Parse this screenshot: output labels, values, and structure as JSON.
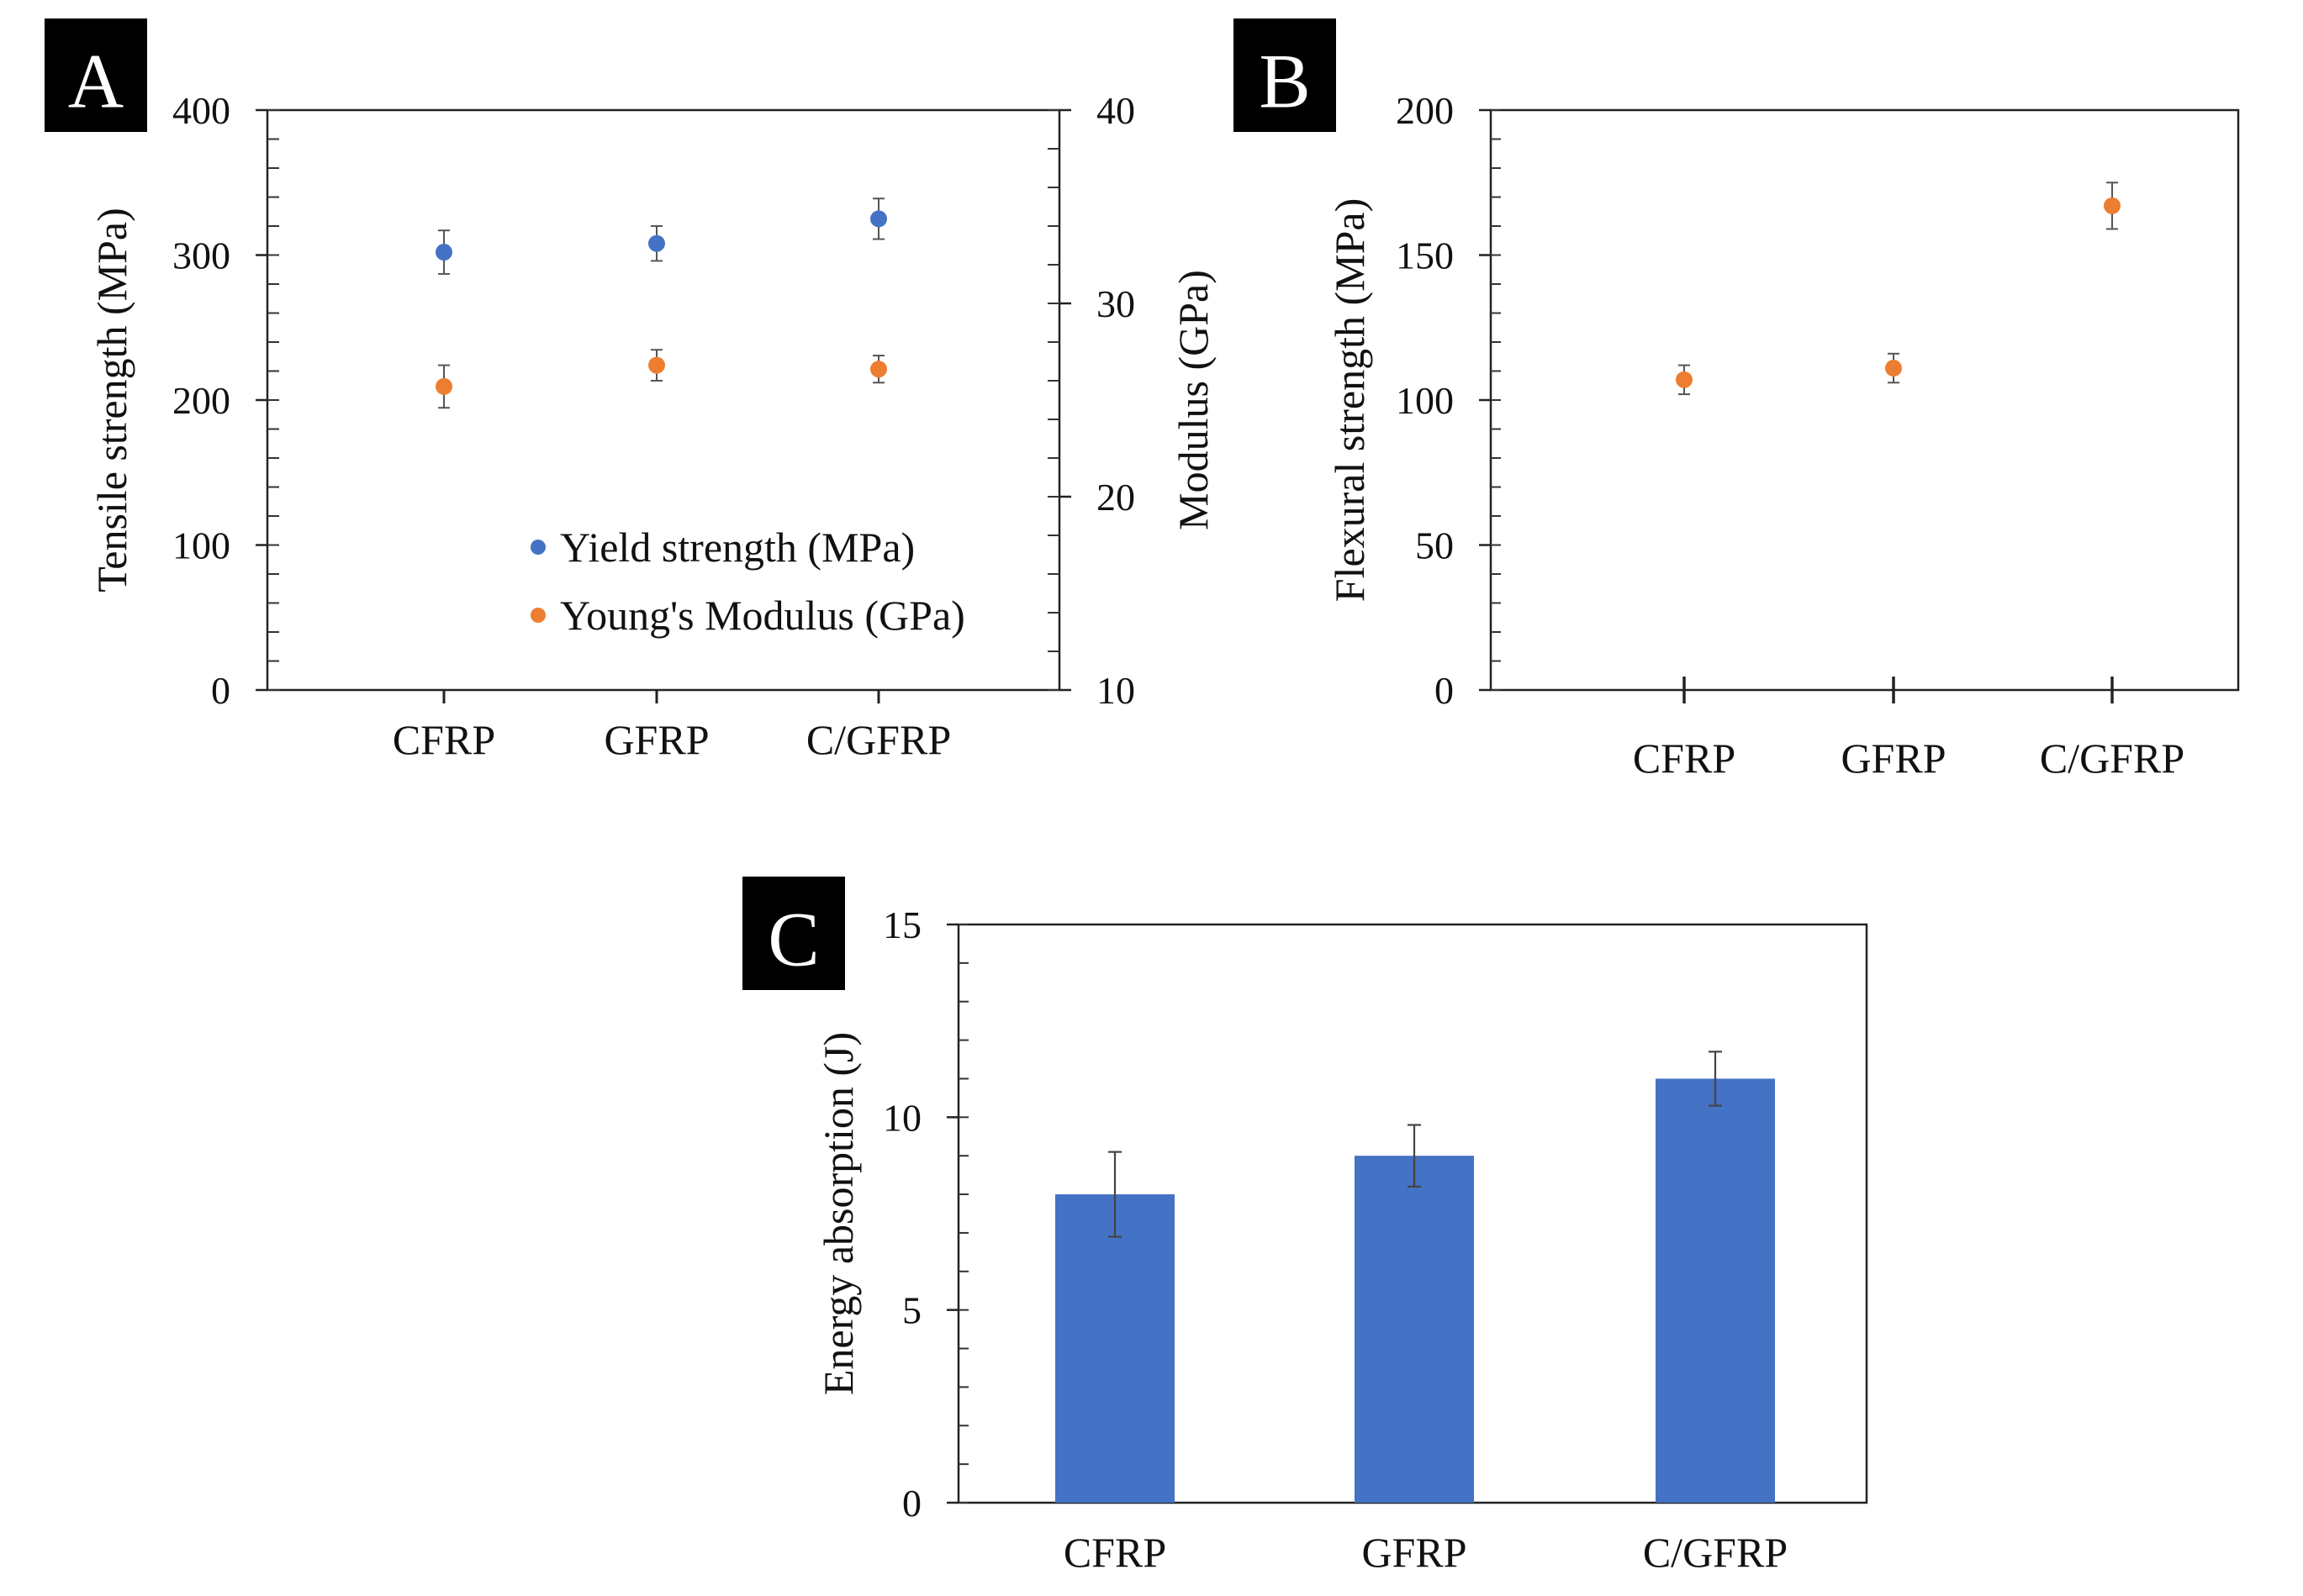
{
  "chart_data": [
    {
      "panel_label": "A",
      "type": "scatter",
      "categories": [
        "CFRP",
        "GFRP",
        "C/GFRP"
      ],
      "ylabel": "Tensile strength (MPa)",
      "ylim": [
        0,
        400
      ],
      "yticks": [
        0,
        100,
        200,
        300,
        400
      ],
      "y2label": "Modulus (GPa)",
      "y2lim": [
        10,
        40
      ],
      "y2ticks": [
        10,
        20,
        30,
        40
      ],
      "legend_position": "lower-right",
      "series": [
        {
          "name": "Yield strength (MPa)",
          "axis": "left",
          "color": "#4472C4",
          "values": [
            302,
            308,
            325
          ],
          "errors": [
            15,
            12,
            14
          ]
        },
        {
          "name": "Young's Modulus (GPa)",
          "axis": "right",
          "color": "#ED7D31",
          "values": [
            25.7,
            26.8,
            26.6
          ],
          "errors": [
            1.1,
            0.8,
            0.7
          ]
        }
      ]
    },
    {
      "panel_label": "B",
      "type": "scatter",
      "categories": [
        "CFRP",
        "GFRP",
        "C/GFRP"
      ],
      "ylabel": "Flexural strength (MPa)",
      "ylim": [
        0,
        200
      ],
      "yticks": [
        0,
        50,
        100,
        150,
        200
      ],
      "series": [
        {
          "name": "Flexural strength",
          "color": "#ED7D31",
          "values": [
            107,
            111,
            167
          ],
          "errors": [
            5,
            5,
            8
          ]
        }
      ]
    },
    {
      "panel_label": "C",
      "type": "bar",
      "categories": [
        "CFRP",
        "GFRP",
        "C/GFRP"
      ],
      "ylabel": "Energy absorption (J)",
      "ylim": [
        0,
        15
      ],
      "yticks": [
        0,
        5,
        10,
        15
      ],
      "series": [
        {
          "name": "Energy absorption",
          "color": "#4472C4",
          "values": [
            8.0,
            9.0,
            11.0
          ],
          "errors": [
            1.1,
            0.8,
            0.7
          ]
        }
      ]
    }
  ]
}
